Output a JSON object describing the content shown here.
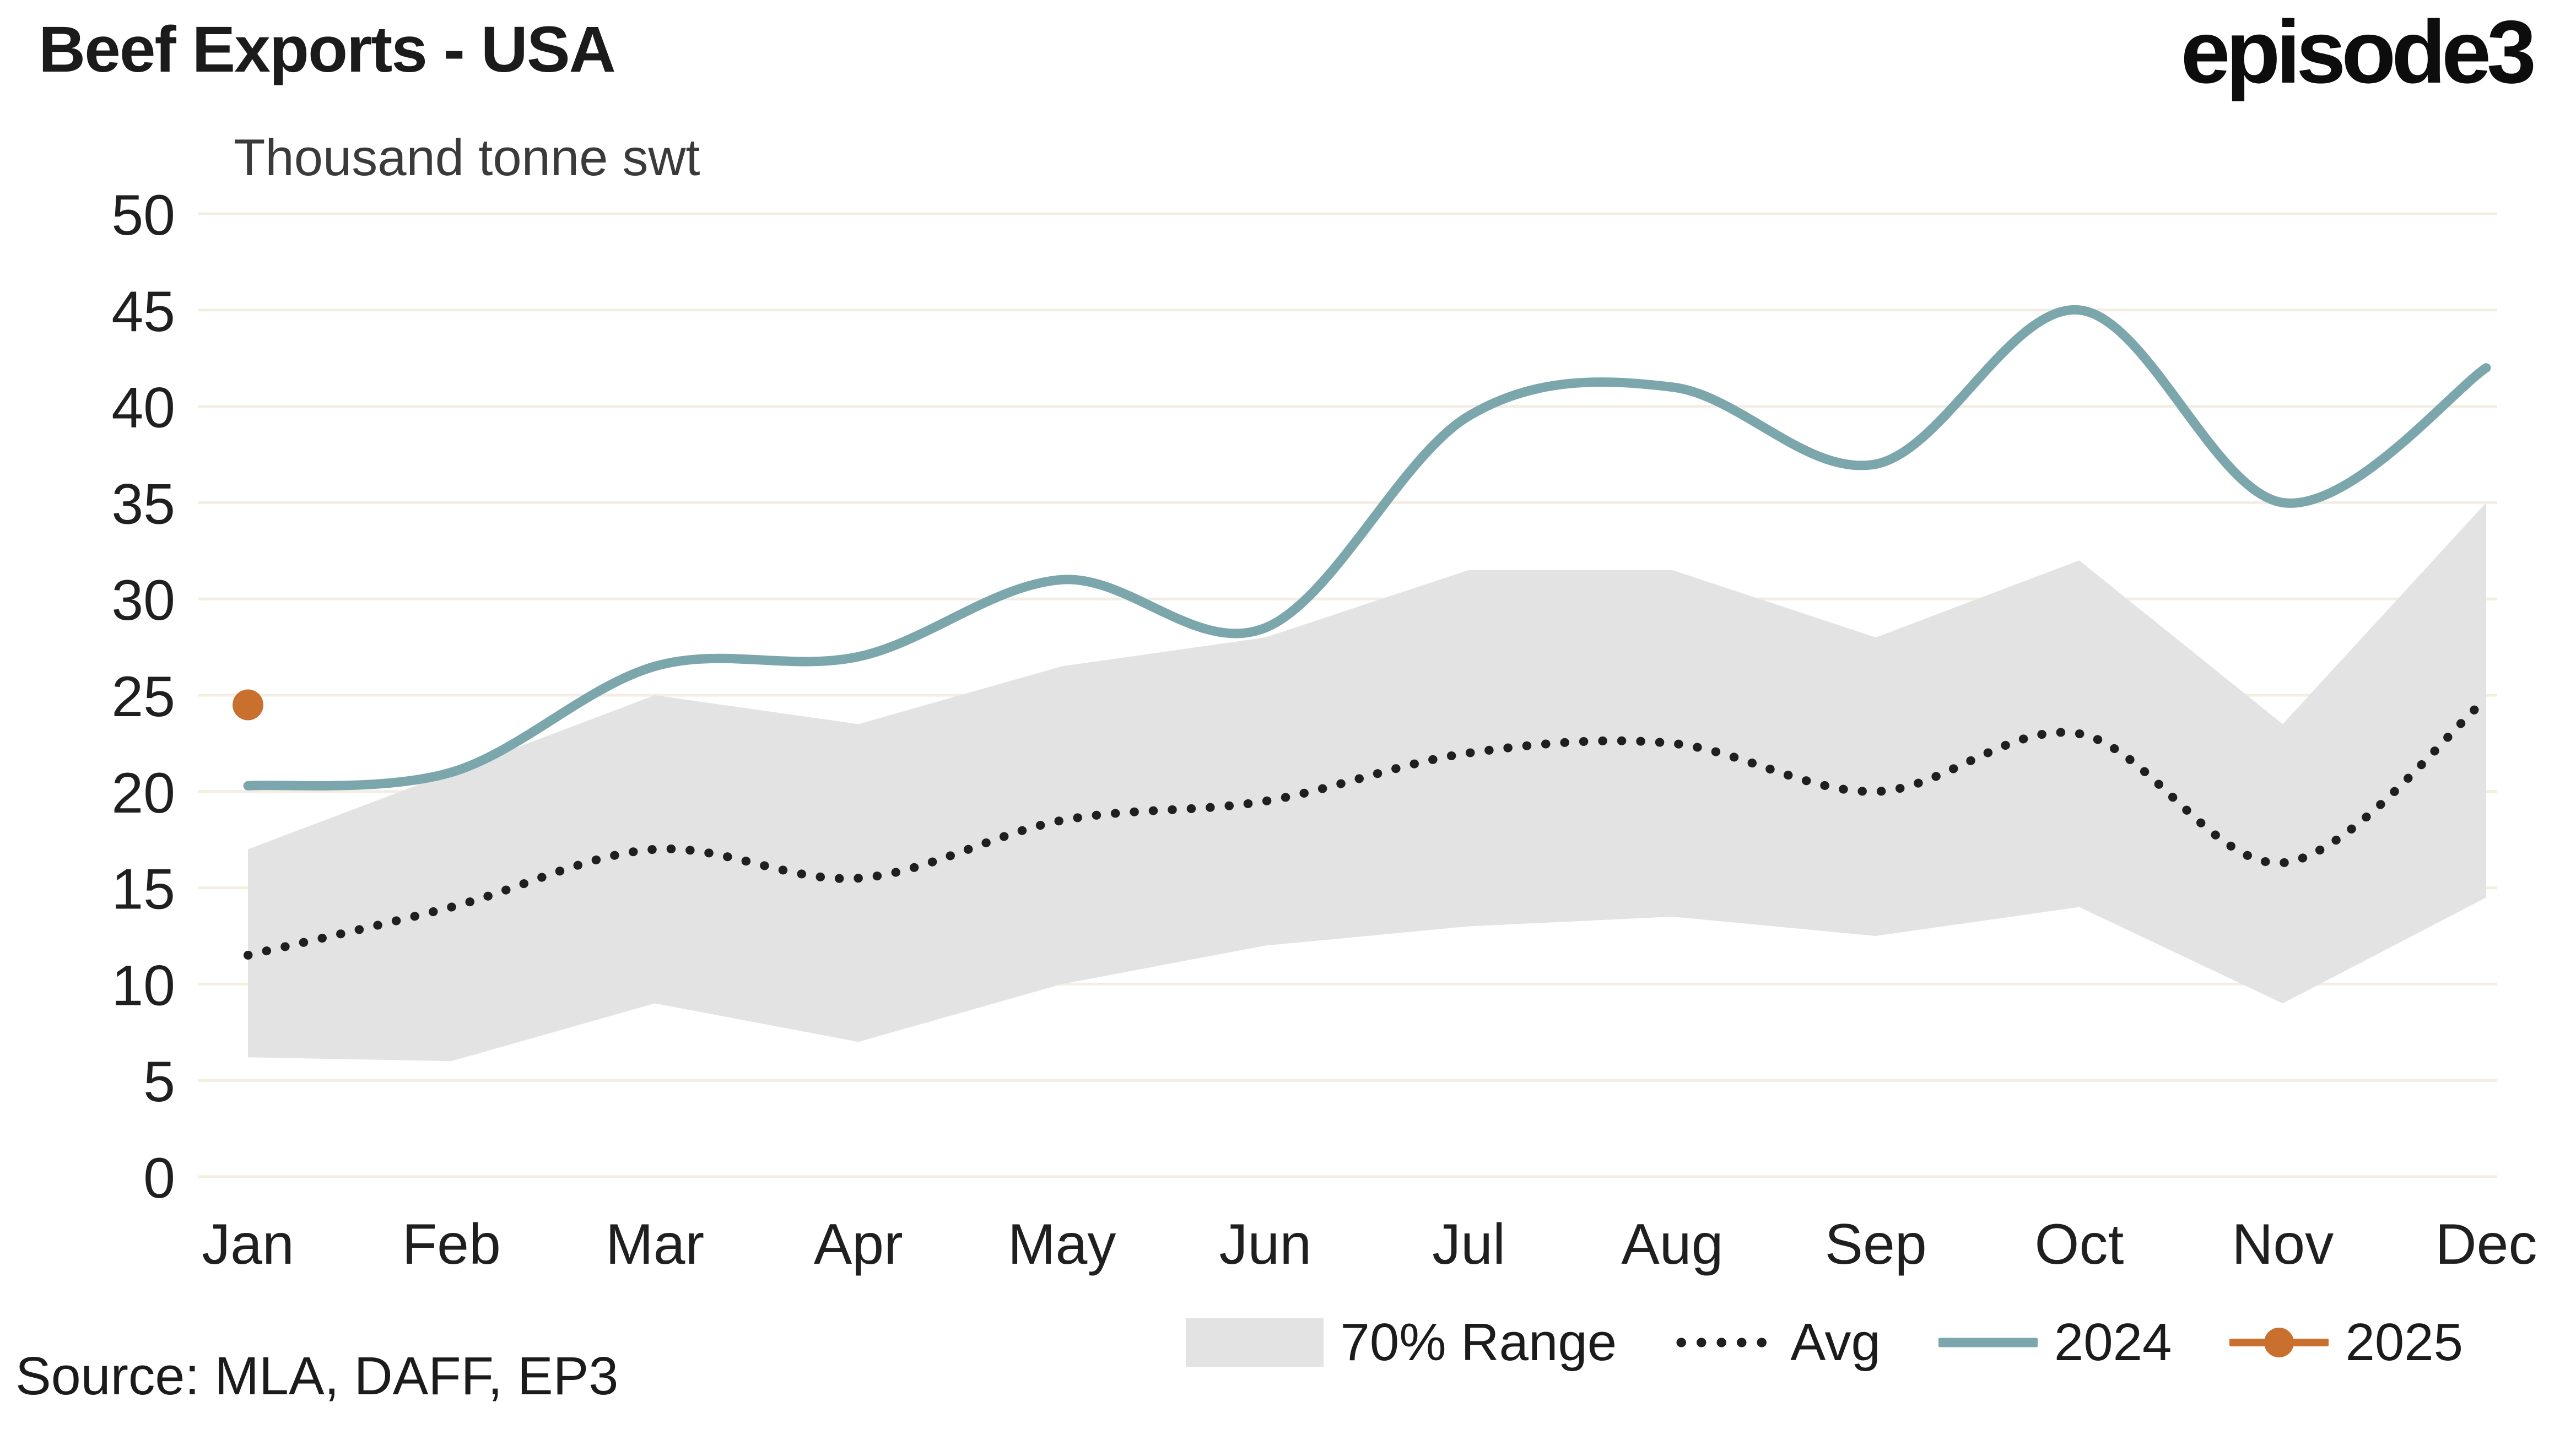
{
  "branding": {
    "logo": "episode3"
  },
  "footer": {
    "source": "Source: MLA, DAFF, EP3"
  },
  "chart_data": {
    "type": "line",
    "title": "Beef Exports - USA",
    "subtitle": "Thousand tonne swt",
    "categories": [
      "Jan",
      "Feb",
      "Mar",
      "Apr",
      "May",
      "Jun",
      "Jul",
      "Aug",
      "Sep",
      "Oct",
      "Nov",
      "Dec"
    ],
    "ylim": [
      0,
      50
    ],
    "ytick_step": 5,
    "grid": true,
    "grid_color": "#f3eee3",
    "legend_position": "bottom",
    "series": [
      {
        "name": "70% Range",
        "type": "band",
        "color": "#e3e3e3",
        "upper": [
          17,
          21,
          25,
          23.5,
          26.5,
          28,
          31.5,
          31.5,
          28,
          32,
          23.5,
          35
        ],
        "lower": [
          6.2,
          6,
          9,
          7,
          10,
          12,
          13,
          13.5,
          12.5,
          14,
          9,
          14.5
        ]
      },
      {
        "name": "Avg",
        "type": "dotted-line",
        "color": "#1f1f1f",
        "values": [
          11.5,
          14,
          17,
          15.5,
          18.5,
          19.5,
          22,
          22.5,
          20,
          23,
          16.3,
          24.8
        ]
      },
      {
        "name": "2024",
        "type": "line",
        "color": "#7ba6ab",
        "values": [
          20.3,
          21,
          26.5,
          27,
          31,
          28.5,
          39.5,
          41,
          37,
          45,
          35,
          42
        ]
      },
      {
        "name": "2025",
        "type": "point",
        "color": "#c9702f",
        "values": [
          24.5
        ]
      }
    ]
  }
}
